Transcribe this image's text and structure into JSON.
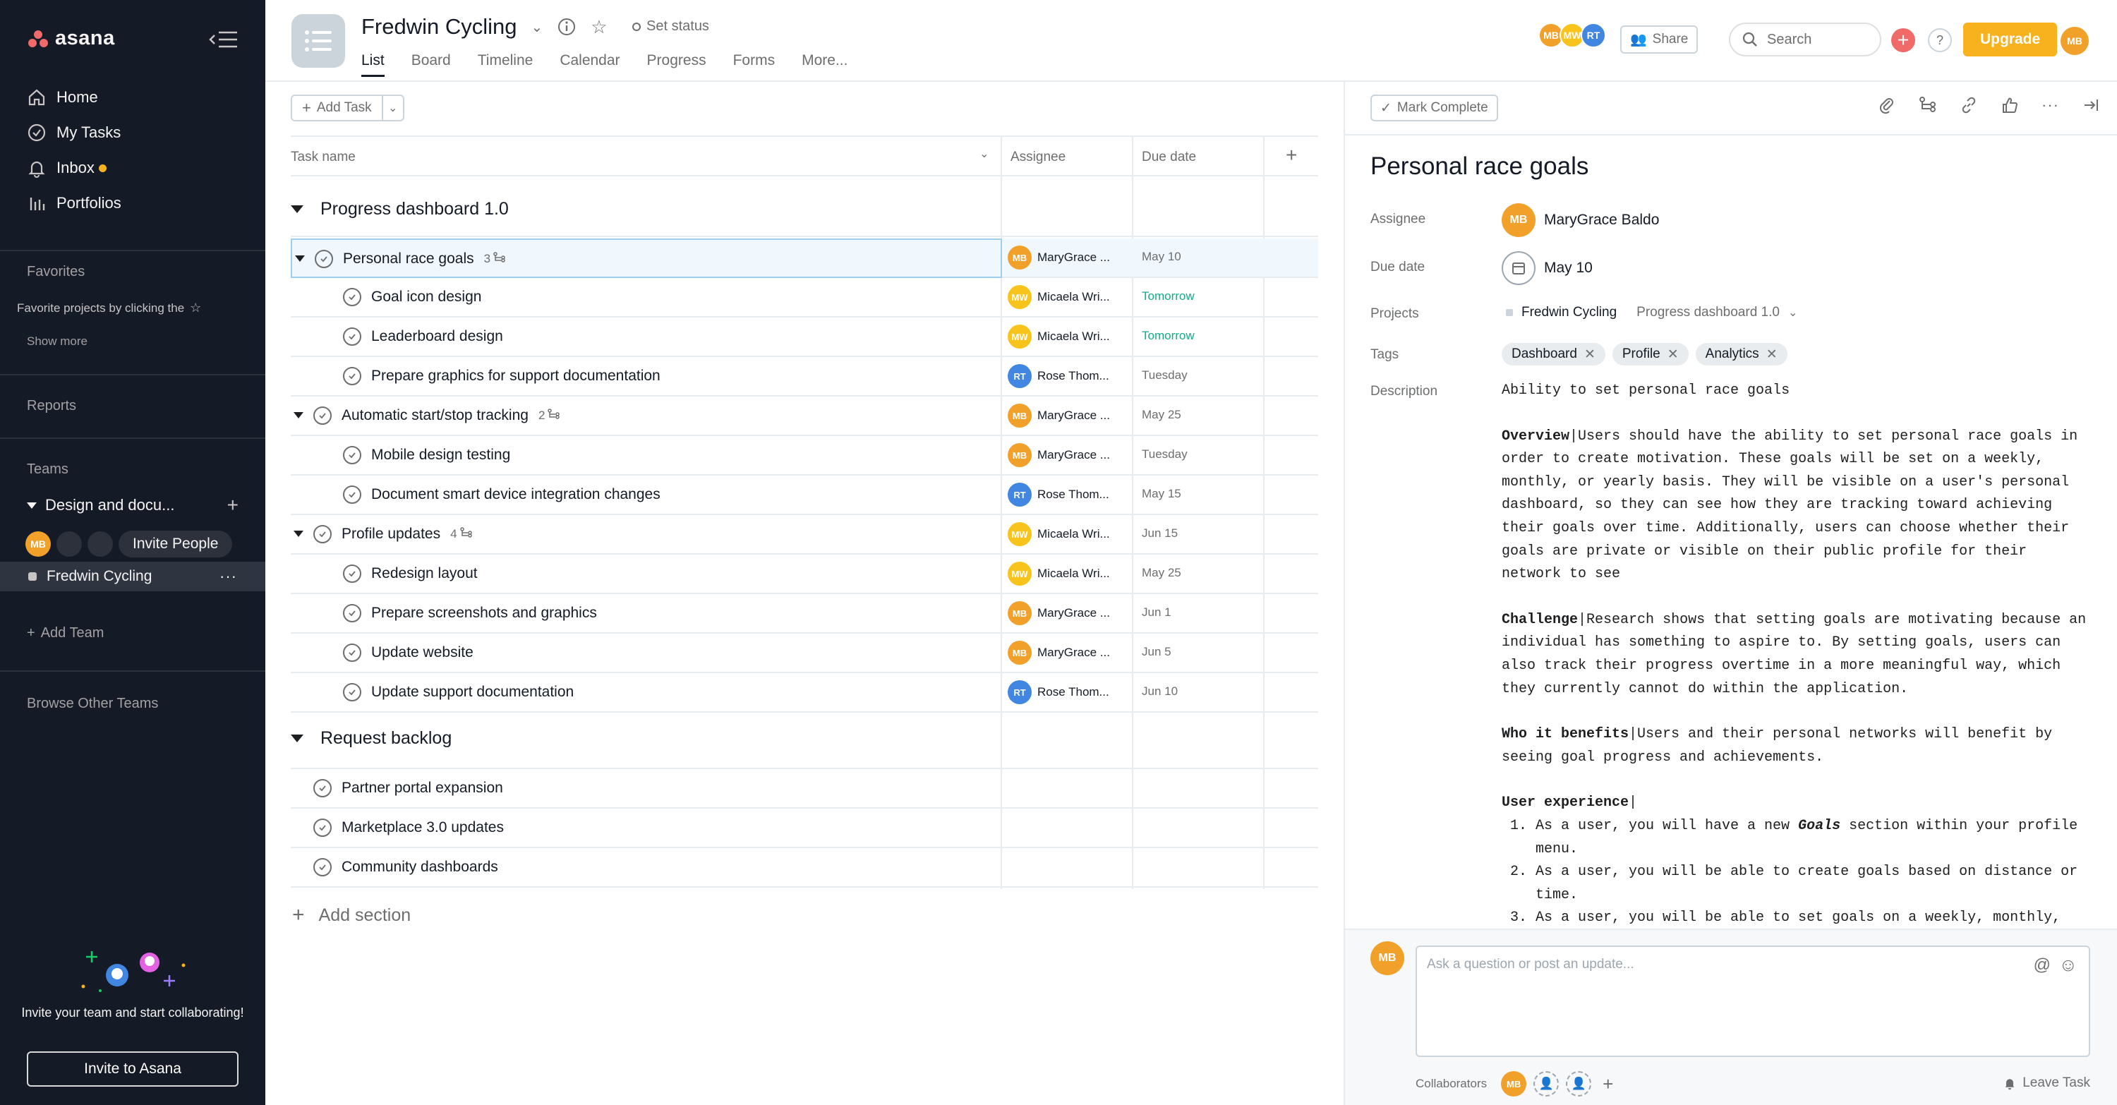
{
  "sidebar": {
    "logo_text": "asana",
    "nav": [
      {
        "label": "Home",
        "icon": "home-icon"
      },
      {
        "label": "My Tasks",
        "icon": "check-circle-icon"
      },
      {
        "label": "Inbox",
        "icon": "bell-icon"
      },
      {
        "label": "Portfolios",
        "icon": "bar-chart-icon"
      }
    ],
    "favorites_heading": "Favorites",
    "favorites_hint": "Favorite projects by clicking the",
    "show_more": "Show more",
    "reports": "Reports",
    "teams_heading": "Teams",
    "team_name": "Design and docu...",
    "invite_people": "Invite People",
    "project_name": "Fredwin Cycling",
    "add_team": "Add Team",
    "browse_teams": "Browse Other Teams",
    "promo_text": "Invite your team and start collaborating!",
    "invite_button": "Invite to Asana"
  },
  "header": {
    "title": "Fredwin Cycling",
    "set_status": "Set status",
    "tabs": [
      "List",
      "Board",
      "Timeline",
      "Calendar",
      "Progress",
      "Forms",
      "More..."
    ],
    "active_tab": "List",
    "members": [
      "MB",
      "MW",
      "RT"
    ],
    "share": "Share",
    "search_placeholder": "Search",
    "upgrade": "Upgrade",
    "user_initials": "MB"
  },
  "list": {
    "add_task": "Add Task",
    "columns": [
      "Task name",
      "Assignee",
      "Due date"
    ],
    "sections": [
      {
        "title": "Progress dashboard 1.0"
      },
      {
        "title": "Request backlog"
      }
    ],
    "rows": [
      {
        "name": "Personal race goals",
        "subtasks": "3",
        "assignee": "MaryGrace ...",
        "initials": "MB",
        "due": "May 10"
      },
      {
        "name": "Goal icon design",
        "assignee": "Micaela Wri...",
        "initials": "MW",
        "due": "Tomorrow"
      },
      {
        "name": "Leaderboard design",
        "assignee": "Micaela Wri...",
        "initials": "MW",
        "due": "Tomorrow"
      },
      {
        "name": "Prepare graphics for support documentation",
        "assignee": "Rose Thom...",
        "initials": "RT",
        "due": "Tuesday"
      },
      {
        "name": "Automatic start/stop tracking",
        "subtasks": "2",
        "assignee": "MaryGrace ...",
        "initials": "MB",
        "due": "May 25"
      },
      {
        "name": "Mobile design testing",
        "assignee": "MaryGrace ...",
        "initials": "MB",
        "due": "Tuesday"
      },
      {
        "name": "Document smart device integration changes",
        "assignee": "Rose Thom...",
        "initials": "RT",
        "due": "May 15"
      },
      {
        "name": "Profile updates",
        "subtasks": "4",
        "assignee": "Micaela Wri...",
        "initials": "MW",
        "due": "Jun 15"
      },
      {
        "name": "Redesign layout",
        "assignee": "Micaela Wri...",
        "initials": "MW",
        "due": "May 25"
      },
      {
        "name": "Prepare screenshots and graphics",
        "assignee": "MaryGrace ...",
        "initials": "MB",
        "due": "Jun 1"
      },
      {
        "name": "Update website",
        "assignee": "MaryGrace ...",
        "initials": "MB",
        "due": "Jun 5"
      },
      {
        "name": "Update support documentation",
        "assignee": "Rose Thom...",
        "initials": "RT",
        "due": "Jun 10"
      },
      {
        "name": "Partner portal expansion"
      },
      {
        "name": "Marketplace 3.0 updates"
      },
      {
        "name": "Community dashboards"
      }
    ],
    "add_section": "Add section"
  },
  "details": {
    "mark_complete": "Mark Complete",
    "title": "Personal race goals",
    "labels": {
      "assignee": "Assignee",
      "due": "Due date",
      "projects": "Projects",
      "tags": "Tags",
      "description": "Description"
    },
    "assignee": "MaryGrace Baldo",
    "assignee_initials": "MB",
    "due": "May 10",
    "project": "Fredwin Cycling",
    "section": "Progress dashboard 1.0",
    "tags": [
      "Dashboard",
      "Profile",
      "Analytics"
    ],
    "desc_intro": "Ability to set personal race goals",
    "overview_h": "Overview",
    "overview": "Users should have the ability to set personal race goals in order to create motivation. These goals will be set on a weekly, monthly, or yearly basis. They will be visible on a user's personal dashboard, so they can see how they are tracking toward achieving their goals over time. Additionally, users can choose whether their goals are private or visible on their public profile for their network to see",
    "challenge_h": "Challenge",
    "challenge": "Research shows that setting goals are motivating because an individual has something to aspire to. By setting goals, users can also track their progress overtime in a more meaningful way, which they currently cannot do within the application.",
    "who_h": "Who it benefits",
    "who": "Users and their personal networks will benefit by seeing goal progress and achievements.",
    "ux_h": "User experience",
    "ux1a": "As a user, you will have a new ",
    "ux1b": "Goals",
    "ux1c": " section within your profile menu.",
    "ux2": "As a user, you will be able to create goals based on distance or time.",
    "ux3": "As a user, you will be able to set goals on a weekly, monthly,",
    "comment_placeholder": "Ask a question or post an update...",
    "collaborators": "Collaborators",
    "leave_task": "Leave Task",
    "commenter_initials": "MB",
    "collaborator_initials": "MB"
  }
}
